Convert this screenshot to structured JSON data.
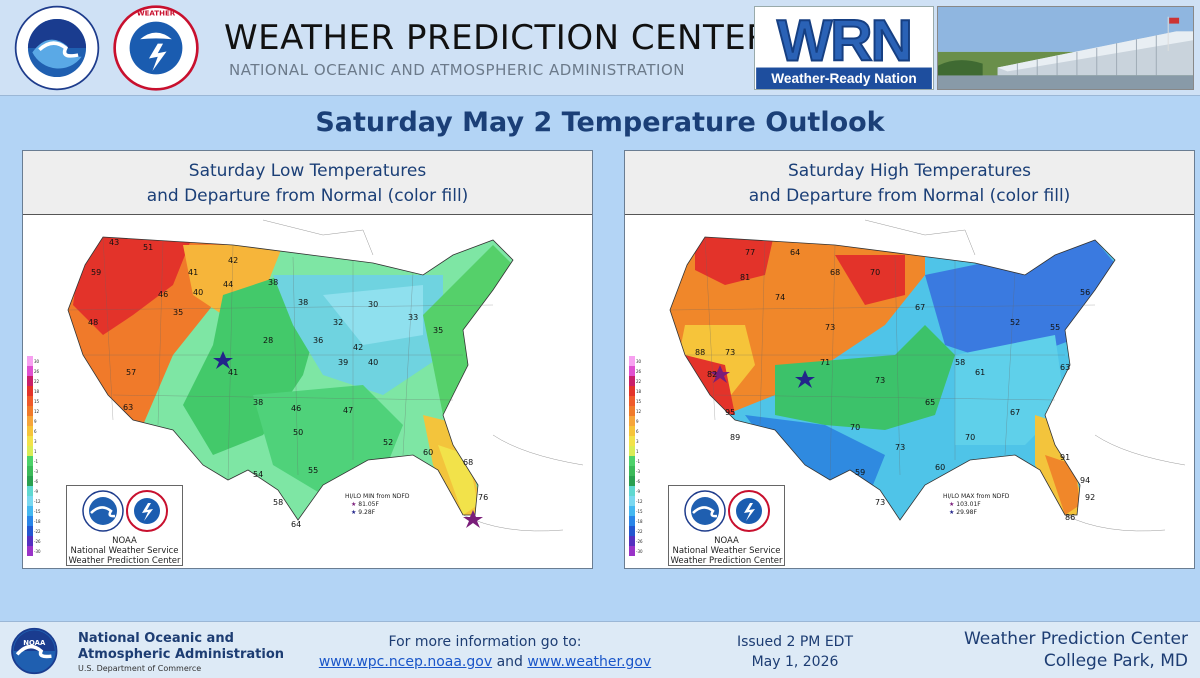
{
  "header": {
    "title": "WEATHER PREDICTION CENTER",
    "subtitle": "NATIONAL OCEANIC AND ATMOSPHERIC ADMINISTRATION",
    "wrn_letters": "WRN",
    "wrn_tagline": "Weather-Ready Nation",
    "noaa_logo_text": "NOAA",
    "noaa_ring_text": "NATIONAL OCEANIC AND ATMOSPHERIC ADMINISTRATION · U.S. DEPARTMENT OF COMMERCE",
    "nws_ring_text": "NATIONAL WEATHER SERVICE"
  },
  "outlook_title": "Saturday May 2 Temperature Outlook",
  "panels": [
    {
      "title_line1": "Saturday Low Temperatures",
      "title_line2": "and Departure from Normal (color fill)",
      "legend_title": "HI/LO MIN from NDFD",
      "legend_hi": "81.05F",
      "legend_lo": "9.28F",
      "cities": [
        "43",
        "51",
        "59",
        "41",
        "38",
        "44",
        "42",
        "48",
        "46",
        "40",
        "35",
        "38",
        "32",
        "30",
        "33",
        "36",
        "42",
        "41",
        "28",
        "35",
        "39",
        "40",
        "57",
        "63",
        "38",
        "46",
        "47",
        "50",
        "54",
        "55",
        "52",
        "58",
        "64",
        "60",
        "68",
        "76"
      ]
    },
    {
      "title_line1": "Saturday High Temperatures",
      "title_line2": "and Departure from Normal (color fill)",
      "legend_title": "HI/LO MAX from NDFD",
      "legend_hi": "103.01F",
      "legend_lo": "29.98F",
      "cities": [
        "77",
        "64",
        "68",
        "70",
        "74",
        "81",
        "73",
        "67",
        "56",
        "58",
        "52",
        "55",
        "61",
        "63",
        "88",
        "73",
        "71",
        "82",
        "95",
        "89",
        "70",
        "73",
        "65",
        "67",
        "70",
        "73",
        "91",
        "94",
        "92",
        "86",
        "59",
        "60",
        "73"
      ]
    }
  ],
  "logo_box": {
    "line1": "NOAA",
    "line2": "National Weather Service",
    "line3": "Weather Prediction Center"
  },
  "scale_labels": [
    "30",
    "26",
    "22",
    "18",
    "15",
    "12",
    "9",
    "6",
    "3",
    "1",
    "-1",
    "-3",
    "-6",
    "-9",
    "-12",
    "-15",
    "-18",
    "-22",
    "-26",
    "-30"
  ],
  "footer": {
    "org_line1": "National Oceanic and",
    "org_line2": "Atmospheric Administration",
    "org_line3": "U.S. Department of Commerce",
    "info_line": "For more information go to:",
    "link1": "www.wpc.ncep.noaa.gov",
    "and": "and",
    "link2": "www.weather.gov",
    "issued": "Issued 2 PM EDT",
    "date": "May 1, 2026",
    "wpc_name": "Weather Prediction Center",
    "wpc_location": "College Park, MD"
  },
  "colors": {
    "title_blue": "#1b3f77",
    "background": "#b3d4f5",
    "link": "#1a56c9"
  }
}
